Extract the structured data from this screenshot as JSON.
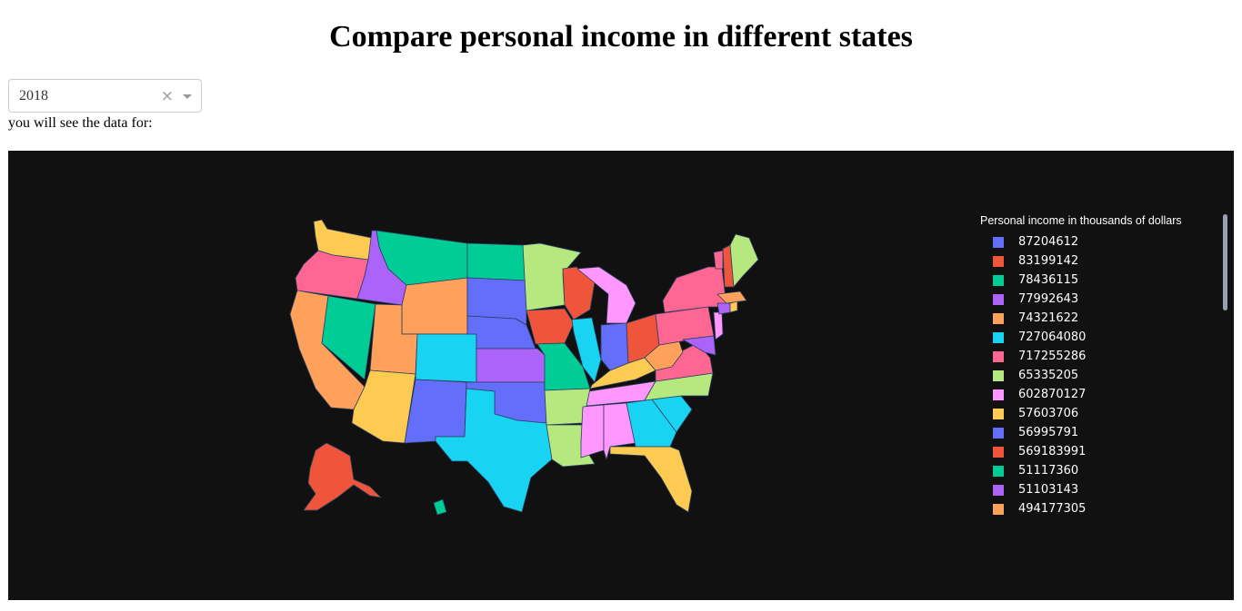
{
  "page": {
    "title": "Compare personal income in different states",
    "caption": "you will see the data for:"
  },
  "dropdown": {
    "selected_value": "2018",
    "clear_icon": "×",
    "icons": [
      "clear-icon",
      "chevron-down-icon"
    ]
  },
  "map": {
    "background_color": "#111111",
    "legend_title": "Personal income in thousands of dollars",
    "legend": [
      {
        "label": "87204612",
        "color": "#636efa"
      },
      {
        "label": "83199142",
        "color": "#ef553b"
      },
      {
        "label": "78436115",
        "color": "#00cc96"
      },
      {
        "label": "77992643",
        "color": "#ab63fa"
      },
      {
        "label": "74321622",
        "color": "#ffa15a"
      },
      {
        "label": "727064080",
        "color": "#19d3f3"
      },
      {
        "label": "717255286",
        "color": "#ff6692"
      },
      {
        "label": "65335205",
        "color": "#b6e880"
      },
      {
        "label": "602870127",
        "color": "#ff97ff"
      },
      {
        "label": "57603706",
        "color": "#fecb52"
      },
      {
        "label": "56995791",
        "color": "#636efa"
      },
      {
        "label": "569183991",
        "color": "#ef553b"
      },
      {
        "label": "51117360",
        "color": "#00cc96"
      },
      {
        "label": "51103143",
        "color": "#ab63fa"
      },
      {
        "label": "494177305",
        "color": "#ffa15a"
      }
    ]
  }
}
